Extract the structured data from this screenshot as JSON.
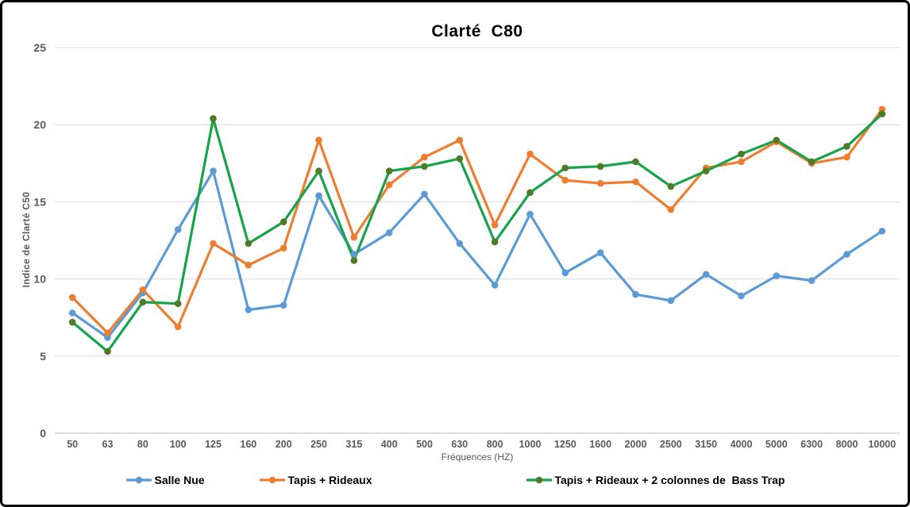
{
  "window": {
    "background_color": "#ffffff",
    "border_color": "#000000"
  },
  "chart_data": {
    "type": "line",
    "title": "Clarté  C80",
    "xlabel": "Fréquences (HZ)",
    "ylabel": "Indice de Clarté C50",
    "ylim": [
      0,
      25
    ],
    "ytick_step": 5,
    "grid": "horizontal",
    "gridline_color": "#D9D9D9",
    "axis_line_color": "#BFBFBF",
    "tick_label_color": "#595959",
    "legend_position": "bottom",
    "categories": [
      "50",
      "63",
      "80",
      "100",
      "125",
      "160",
      "200",
      "250",
      "315",
      "400",
      "500",
      "630",
      "800",
      "1000",
      "1250",
      "1600",
      "2000",
      "2500",
      "3150",
      "4000",
      "5000",
      "6300",
      "8000",
      "10000"
    ],
    "series": [
      {
        "name": "Salle Nue",
        "color": "#5B9BD5",
        "marker_color": "#5B9BD5",
        "values": [
          7.8,
          6.2,
          9.1,
          13.2,
          17.0,
          8.0,
          8.3,
          15.4,
          11.6,
          13.0,
          15.5,
          12.3,
          9.6,
          14.2,
          10.4,
          11.7,
          9.0,
          8.6,
          10.3,
          8.9,
          10.2,
          9.9,
          11.6,
          13.1
        ]
      },
      {
        "name": "Tapis + Rideaux",
        "color": "#ED7D31",
        "marker_color": "#ED7D31",
        "values": [
          8.8,
          6.5,
          9.3,
          6.9,
          12.3,
          10.9,
          12.0,
          19.0,
          12.7,
          16.1,
          17.9,
          19.0,
          13.5,
          18.1,
          16.4,
          16.2,
          16.3,
          14.5,
          17.2,
          17.6,
          18.9,
          17.5,
          17.9,
          21.0
        ]
      },
      {
        "name": "Tapis + Rideaux + 2 colonnes de  Bass Trap",
        "color": "#17A349",
        "marker_color": "#4F7A28",
        "values": [
          7.2,
          5.3,
          8.5,
          8.4,
          20.4,
          12.3,
          13.7,
          17.0,
          11.2,
          17.0,
          17.3,
          17.8,
          12.4,
          15.6,
          17.2,
          17.3,
          17.6,
          16.0,
          17.0,
          18.1,
          19.0,
          17.6,
          18.6,
          20.7
        ]
      }
    ]
  }
}
